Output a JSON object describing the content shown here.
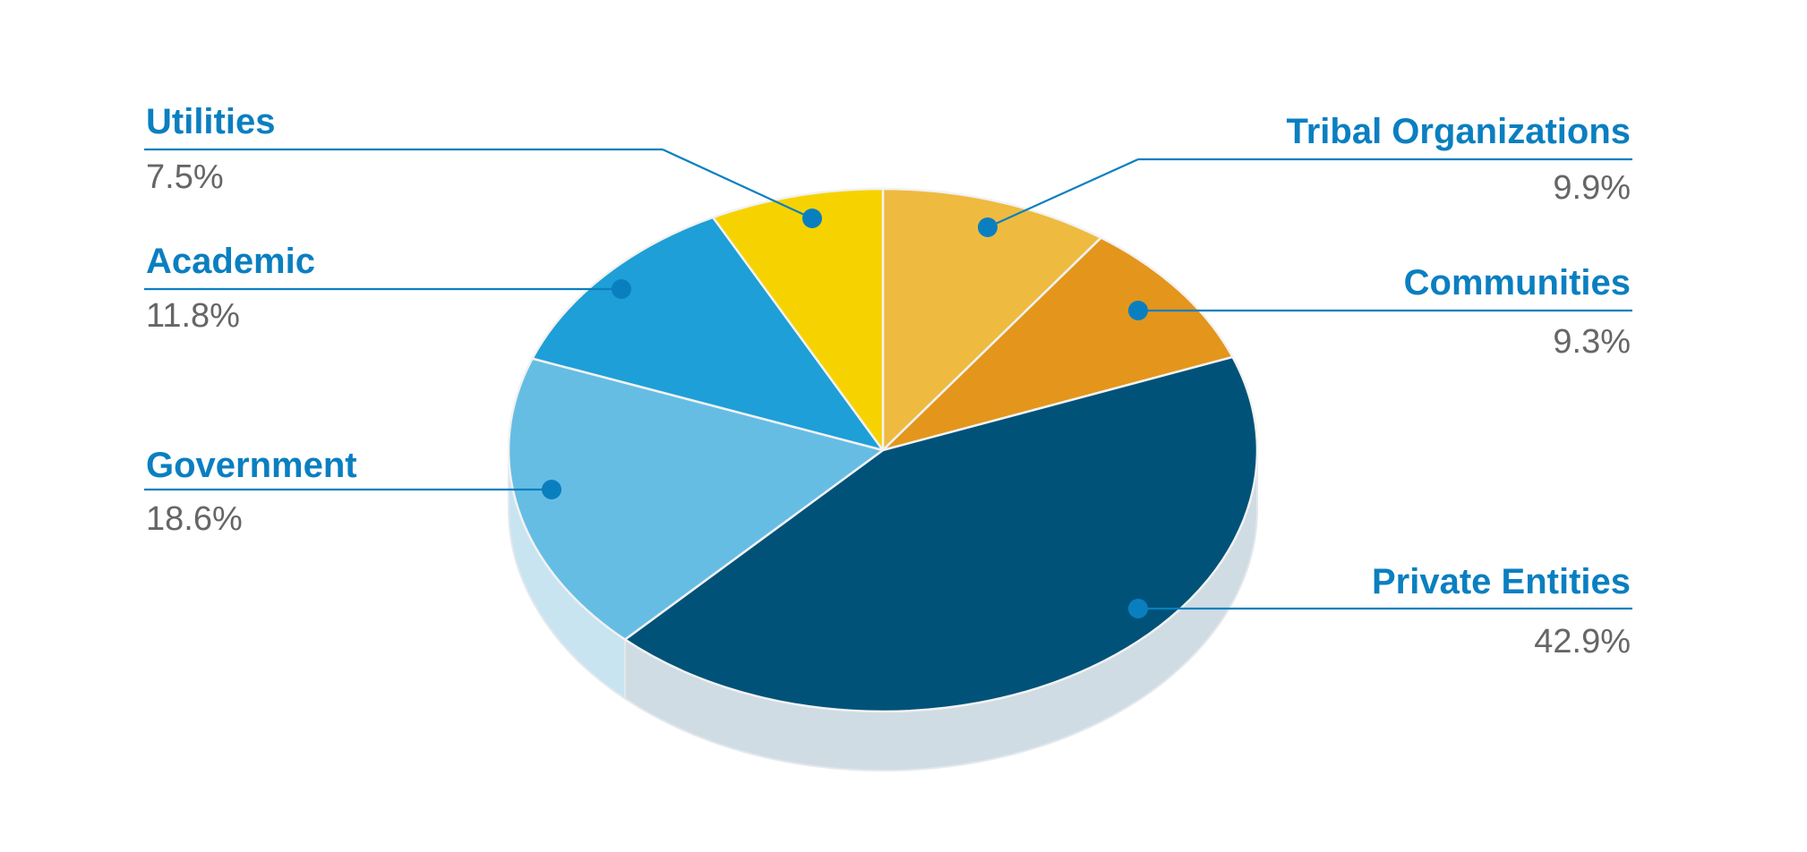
{
  "chart_data": {
    "type": "pie",
    "title": "",
    "slices": [
      {
        "label": "Tribal Organizations",
        "value": 9.9,
        "value_text": "9.9%",
        "color": "#EEBB40",
        "side_color": "#cfd9e1"
      },
      {
        "label": "Communities",
        "value": 9.3,
        "value_text": "9.3%",
        "color": "#E3961B",
        "side_color": "#cfd9e1"
      },
      {
        "label": "Private Entities",
        "value": 42.9,
        "value_text": "42.9%",
        "color": "#005279",
        "side_color": "#cfdce4"
      },
      {
        "label": "Government",
        "value": 18.6,
        "value_text": "18.6%",
        "color": "#66BDE4",
        "side_color": "#c8e4f1"
      },
      {
        "label": "Academic",
        "value": 11.8,
        "value_text": "11.8%",
        "color": "#1E9FD7",
        "side_color": "#c8e4f1"
      },
      {
        "label": "Utilities",
        "value": 7.5,
        "value_text": "7.5%",
        "color": "#F6D300",
        "side_color": "#cfd9e1"
      }
    ],
    "label_color": "#0a7fc0",
    "value_color": "#666666",
    "leader_color": "#0a7fc0"
  }
}
